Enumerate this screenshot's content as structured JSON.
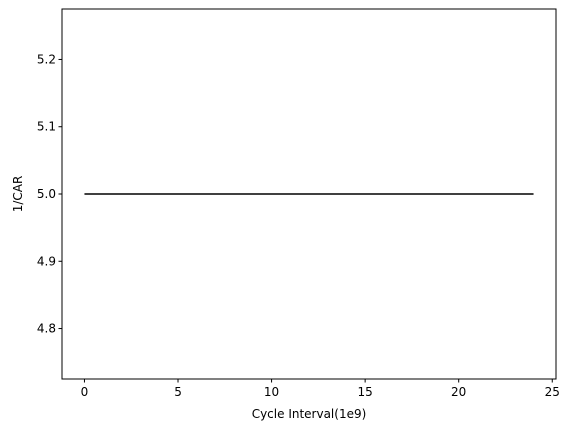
{
  "chart_data": {
    "type": "line",
    "title": "",
    "xlabel": "Cycle Interval(1e9)",
    "ylabel": "1/CAR",
    "xlim": [
      -1.2,
      25.2
    ],
    "ylim": [
      4.725,
      5.275
    ],
    "xticks": [
      0,
      5,
      10,
      15,
      20,
      25
    ],
    "xtick_labels": [
      "0",
      "5",
      "10",
      "15",
      "20",
      "25"
    ],
    "yticks": [
      4.8,
      4.9,
      5.0,
      5.1,
      5.2
    ],
    "ytick_labels": [
      "4.8",
      "4.9",
      "5.0",
      "5.1",
      "5.2"
    ],
    "grid": false,
    "series": [
      {
        "color": "#000000",
        "x": [
          0,
          24
        ],
        "y": [
          5.0,
          5.0
        ]
      }
    ]
  }
}
